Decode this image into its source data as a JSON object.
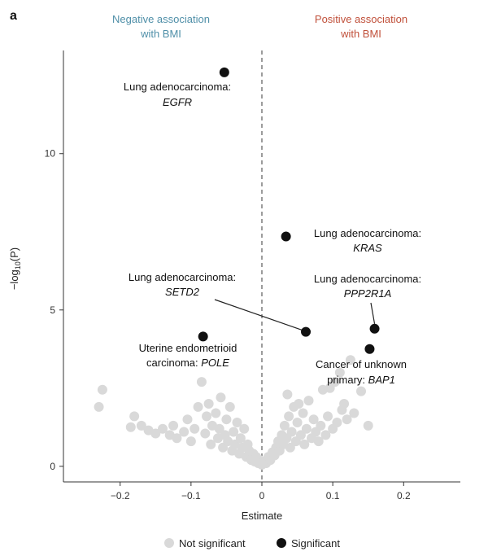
{
  "panel_label": "a",
  "chart_data": {
    "type": "scatter",
    "header_negative": [
      "Negative association",
      "with BMI"
    ],
    "header_positive": [
      "Positive association",
      "with BMI"
    ],
    "xlabel": "Estimate",
    "ylabel": "−log10(P)",
    "ylabel_main": "−log",
    "ylabel_sub": "10",
    "ylabel_tail": "(P)",
    "xlim": [
      -0.28,
      0.28
    ],
    "ylim": [
      -0.5,
      13.3
    ],
    "xticks": [
      -0.2,
      -0.1,
      0,
      0.1,
      0.2
    ],
    "xtick_labels": [
      "−0.2",
      "−0.1",
      "0",
      "0.1",
      "0.2"
    ],
    "yticks": [
      0,
      5,
      10
    ],
    "ytick_labels": [
      "0",
      "5",
      "10"
    ],
    "reference_line_x": 0,
    "legend": [
      {
        "label": "Not significant",
        "color": "#d9d9d9"
      },
      {
        "label": "Significant",
        "color": "#111111"
      }
    ],
    "colors": {
      "not_significant": "#d9d9d9",
      "significant": "#111111"
    },
    "significant_points": [
      {
        "x": -0.053,
        "y": 12.6,
        "label": "Lung adenocarcinoma:",
        "gene": "EGFR"
      },
      {
        "x": 0.034,
        "y": 7.35,
        "label": "Lung adenocarcinoma:",
        "gene": "KRAS"
      },
      {
        "x": 0.062,
        "y": 4.3,
        "label": "Lung adenocarcinoma:",
        "gene": "SETD2"
      },
      {
        "x": 0.159,
        "y": 4.4,
        "label": "Lung adenocarcinoma:",
        "gene": "PPP2R1A"
      },
      {
        "x": 0.152,
        "y": 3.75,
        "label": "Cancer of unknown primary:",
        "gene": "BAP1"
      },
      {
        "x": -0.083,
        "y": 4.15,
        "label": "Uterine endometrioid carcinoma:",
        "gene": "POLE"
      }
    ],
    "not_significant_points": [
      {
        "x": -0.23,
        "y": 1.9
      },
      {
        "x": -0.225,
        "y": 2.45
      },
      {
        "x": -0.185,
        "y": 1.25
      },
      {
        "x": -0.18,
        "y": 1.6
      },
      {
        "x": -0.17,
        "y": 1.3
      },
      {
        "x": -0.16,
        "y": 1.15
      },
      {
        "x": -0.15,
        "y": 1.05
      },
      {
        "x": -0.14,
        "y": 1.2
      },
      {
        "x": -0.13,
        "y": 1.0
      },
      {
        "x": -0.125,
        "y": 1.3
      },
      {
        "x": -0.12,
        "y": 0.9
      },
      {
        "x": -0.11,
        "y": 1.1
      },
      {
        "x": -0.105,
        "y": 1.5
      },
      {
        "x": -0.1,
        "y": 0.8
      },
      {
        "x": -0.095,
        "y": 1.2
      },
      {
        "x": -0.09,
        "y": 1.9
      },
      {
        "x": -0.085,
        "y": 2.7
      },
      {
        "x": -0.08,
        "y": 1.05
      },
      {
        "x": -0.078,
        "y": 1.6
      },
      {
        "x": -0.075,
        "y": 2.0
      },
      {
        "x": -0.072,
        "y": 0.7
      },
      {
        "x": -0.07,
        "y": 1.3
      },
      {
        "x": -0.065,
        "y": 1.7
      },
      {
        "x": -0.062,
        "y": 0.9
      },
      {
        "x": -0.06,
        "y": 1.2
      },
      {
        "x": -0.058,
        "y": 2.2
      },
      {
        "x": -0.055,
        "y": 0.6
      },
      {
        "x": -0.052,
        "y": 1.0
      },
      {
        "x": -0.05,
        "y": 1.5
      },
      {
        "x": -0.048,
        "y": 0.8
      },
      {
        "x": -0.045,
        "y": 1.9
      },
      {
        "x": -0.042,
        "y": 0.5
      },
      {
        "x": -0.04,
        "y": 1.1
      },
      {
        "x": -0.038,
        "y": 0.7
      },
      {
        "x": -0.035,
        "y": 1.4
      },
      {
        "x": -0.032,
        "y": 0.4
      },
      {
        "x": -0.03,
        "y": 0.9
      },
      {
        "x": -0.028,
        "y": 0.6
      },
      {
        "x": -0.025,
        "y": 1.2
      },
      {
        "x": -0.022,
        "y": 0.3
      },
      {
        "x": -0.02,
        "y": 0.7
      },
      {
        "x": -0.018,
        "y": 0.5
      },
      {
        "x": -0.015,
        "y": 0.2
      },
      {
        "x": -0.012,
        "y": 0.4
      },
      {
        "x": -0.01,
        "y": 0.15
      },
      {
        "x": -0.008,
        "y": 0.3
      },
      {
        "x": -0.005,
        "y": 0.1
      },
      {
        "x": -0.003,
        "y": 0.2
      },
      {
        "x": 0.0,
        "y": 0.05
      },
      {
        "x": 0.003,
        "y": 0.15
      },
      {
        "x": 0.006,
        "y": 0.1
      },
      {
        "x": 0.009,
        "y": 0.3
      },
      {
        "x": 0.012,
        "y": 0.2
      },
      {
        "x": 0.015,
        "y": 0.45
      },
      {
        "x": 0.018,
        "y": 0.35
      },
      {
        "x": 0.02,
        "y": 0.6
      },
      {
        "x": 0.023,
        "y": 0.8
      },
      {
        "x": 0.025,
        "y": 0.5
      },
      {
        "x": 0.028,
        "y": 1.0
      },
      {
        "x": 0.03,
        "y": 0.7
      },
      {
        "x": 0.032,
        "y": 1.3
      },
      {
        "x": 0.035,
        "y": 0.9
      },
      {
        "x": 0.036,
        "y": 2.3
      },
      {
        "x": 0.038,
        "y": 1.6
      },
      {
        "x": 0.04,
        "y": 0.6
      },
      {
        "x": 0.042,
        "y": 1.1
      },
      {
        "x": 0.045,
        "y": 1.9
      },
      {
        "x": 0.048,
        "y": 0.8
      },
      {
        "x": 0.05,
        "y": 1.4
      },
      {
        "x": 0.052,
        "y": 2.0
      },
      {
        "x": 0.055,
        "y": 1.0
      },
      {
        "x": 0.058,
        "y": 1.7
      },
      {
        "x": 0.06,
        "y": 0.7
      },
      {
        "x": 0.063,
        "y": 1.2
      },
      {
        "x": 0.066,
        "y": 2.1
      },
      {
        "x": 0.07,
        "y": 0.9
      },
      {
        "x": 0.073,
        "y": 1.5
      },
      {
        "x": 0.076,
        "y": 1.1
      },
      {
        "x": 0.08,
        "y": 0.8
      },
      {
        "x": 0.083,
        "y": 1.3
      },
      {
        "x": 0.086,
        "y": 2.45
      },
      {
        "x": 0.09,
        "y": 1.0
      },
      {
        "x": 0.093,
        "y": 1.6
      },
      {
        "x": 0.096,
        "y": 2.5
      },
      {
        "x": 0.1,
        "y": 1.2
      },
      {
        "x": 0.103,
        "y": 2.7
      },
      {
        "x": 0.106,
        "y": 1.4
      },
      {
        "x": 0.11,
        "y": 3.0
      },
      {
        "x": 0.113,
        "y": 1.8
      },
      {
        "x": 0.116,
        "y": 2.0
      },
      {
        "x": 0.12,
        "y": 1.5
      },
      {
        "x": 0.125,
        "y": 3.4
      },
      {
        "x": 0.13,
        "y": 1.7
      },
      {
        "x": 0.14,
        "y": 2.4
      },
      {
        "x": 0.15,
        "y": 1.3
      }
    ]
  }
}
